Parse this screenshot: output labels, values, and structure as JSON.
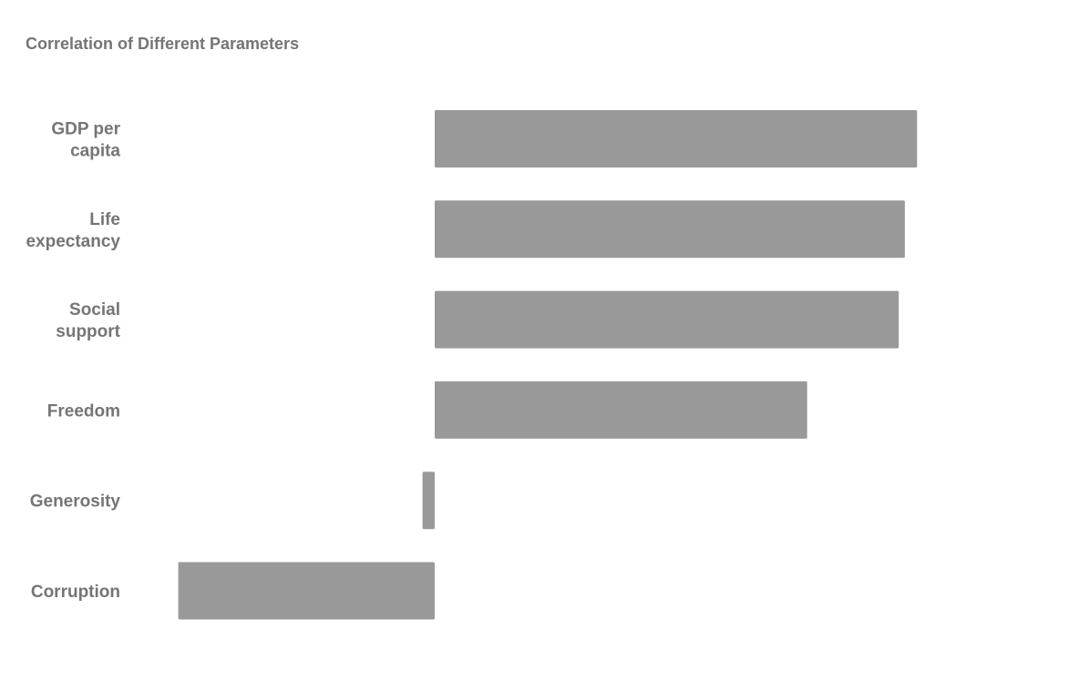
{
  "chart_data": {
    "type": "bar",
    "orientation": "horizontal",
    "title": "Correlation of Different Parameters",
    "xlabel": "",
    "ylabel": "",
    "categories": [
      [
        "GDP per",
        "capita"
      ],
      [
        "Life",
        "expectancy"
      ],
      [
        "Social",
        "support"
      ],
      [
        "Freedom"
      ],
      [
        "Generosity"
      ],
      [
        "Corruption"
      ]
    ],
    "values": [
      0.79,
      0.77,
      0.76,
      0.61,
      -0.02,
      -0.42
    ],
    "xlim": [
      -0.45,
      1.0
    ],
    "grid": false,
    "legend": "none",
    "bar_color": "#999999",
    "label_color": "#757575"
  }
}
